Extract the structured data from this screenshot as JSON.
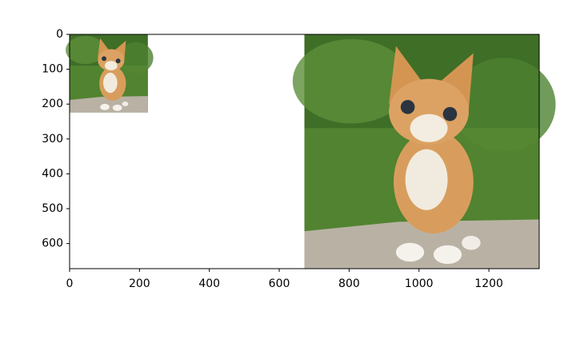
{
  "chart_data": {
    "type": "image",
    "xlim": [
      0,
      1344
    ],
    "ylim": [
      672,
      0
    ],
    "xticks": [
      0,
      200,
      400,
      600,
      800,
      1000,
      1200
    ],
    "yticks": [
      0,
      100,
      200,
      300,
      400,
      500,
      600
    ],
    "images": [
      {
        "x": [
          0,
          224
        ],
        "y": [
          224,
          0
        ]
      },
      {
        "x": [
          672,
          1344
        ],
        "y": [
          672,
          0
        ]
      }
    ]
  }
}
